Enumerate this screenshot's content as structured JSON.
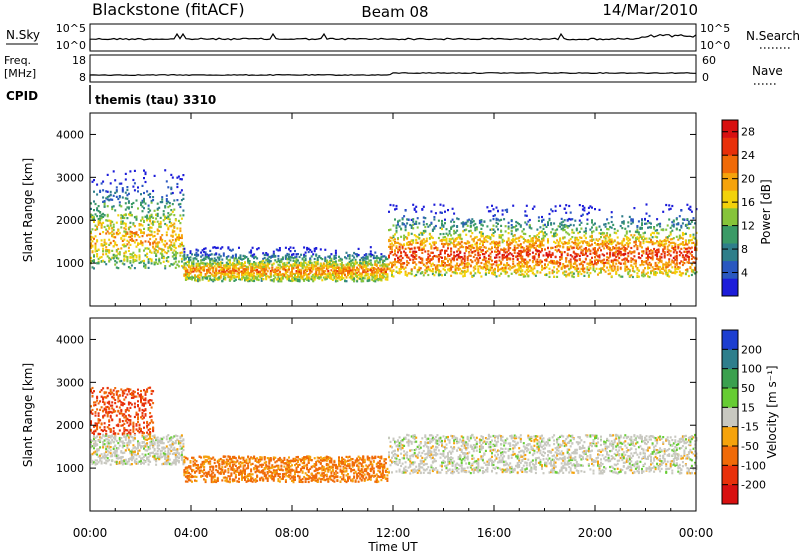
{
  "header": {
    "station": "Blackstone (fitACF)",
    "beam": "Beam 08",
    "date": "14/Mar/2010"
  },
  "status_panels": {
    "nsky": {
      "left_label": "N.Sky",
      "right_label": "N.Search",
      "left_ticks": [
        "10^5",
        "10^0"
      ],
      "right_ticks": [
        "10^5",
        "10^0"
      ]
    },
    "freq": {
      "left_label_1": "Freq.",
      "left_label_2": "[MHz]",
      "right_label": "Nave",
      "left_ticks": [
        "18",
        "8"
      ],
      "right_ticks": [
        "60",
        "0"
      ]
    },
    "cpid": {
      "label": "CPID",
      "value": "themis (tau) 3310"
    }
  },
  "chart_data": [
    {
      "type": "heatmap",
      "panel": "power",
      "ylabel": "Slant Range [km]",
      "xlabel": "",
      "ylim": [
        0,
        4500
      ],
      "xlim": [
        0,
        24
      ],
      "yticks": [
        "1000",
        "2000",
        "3000",
        "4000"
      ],
      "colorbar": {
        "label": "Power [dB]",
        "ticks": [
          "4",
          "8",
          "12",
          "16",
          "20",
          "24",
          "28"
        ],
        "range": [
          0,
          30
        ],
        "colors": [
          "#1c1cd9",
          "#2a58c0",
          "#2f7e8a",
          "#3a9a66",
          "#86c43a",
          "#f2d20a",
          "#f5a30c",
          "#f06a08",
          "#e8300a",
          "#d81010"
        ]
      },
      "echo_bands": [
        {
          "t_start": 0.0,
          "t_end": 3.7,
          "range_low": 900,
          "range_high": 3200,
          "peak_power": 20
        },
        {
          "t_start": 3.7,
          "t_end": 11.8,
          "range_low": 600,
          "range_high": 1400,
          "peak_power": 22
        },
        {
          "t_start": 11.8,
          "t_end": 24.0,
          "range_low": 700,
          "range_high": 2400,
          "peak_power": 26
        }
      ]
    },
    {
      "type": "heatmap",
      "panel": "velocity",
      "ylabel": "Slant Range [km]",
      "xlabel": "Time UT",
      "ylim": [
        0,
        4500
      ],
      "xlim": [
        0,
        24
      ],
      "yticks": [
        "1000",
        "2000",
        "3000",
        "4000"
      ],
      "xticks": [
        "00:00",
        "04:00",
        "08:00",
        "12:00",
        "16:00",
        "20:00",
        "00:00"
      ],
      "colorbar": {
        "label": "Velocity [m s⁻¹]",
        "ticks": [
          "200",
          "100",
          "50",
          "15",
          "-15",
          "-50",
          "-100",
          "-200"
        ],
        "colors": [
          "#1c3ed0",
          "#2e7e8c",
          "#3aa04e",
          "#66cc33",
          "#c8c8c0",
          "#f5a30c",
          "#f06a08",
          "#e8300a",
          "#d81010"
        ]
      },
      "echo_bands": [
        {
          "t_start": 0.0,
          "t_end": 2.5,
          "range_low": 1800,
          "range_high": 2900,
          "velocity": -80
        },
        {
          "t_start": 0.0,
          "t_end": 3.7,
          "range_low": 1100,
          "range_high": 1800,
          "velocity": 0
        },
        {
          "t_start": 3.7,
          "t_end": 11.8,
          "range_low": 700,
          "range_high": 1300,
          "velocity": -40
        },
        {
          "t_start": 11.8,
          "t_end": 24.0,
          "range_low": 900,
          "range_high": 1800,
          "velocity": 0
        }
      ]
    }
  ]
}
